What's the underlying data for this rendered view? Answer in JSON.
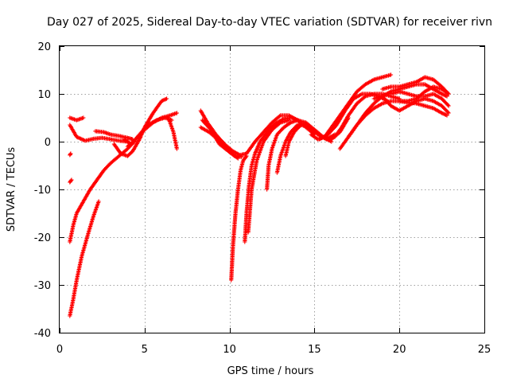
{
  "chart_data": {
    "type": "scatter",
    "title": "Day 027 of 2025, Sidereal Day-to-day VTEC variation (SDTVAR) for receiver rivn",
    "xlabel": "GPS time / hours",
    "ylabel": "SDTVAR / TECUs",
    "xlim": [
      0,
      25
    ],
    "ylim": [
      -40,
      20
    ],
    "xticks": [
      0,
      5,
      10,
      15,
      20,
      25
    ],
    "yticks": [
      -40,
      -30,
      -20,
      -10,
      0,
      10,
      20
    ],
    "xtick_labels": [
      "0",
      "5",
      "10",
      "15",
      "20",
      "25"
    ],
    "ytick_labels": [
      "-40",
      "-30",
      "-20",
      "-10",
      "0",
      "10",
      "20"
    ],
    "grid": true,
    "marker": "+",
    "color": "#ff0000",
    "series": [
      {
        "name": "trace-1",
        "x": [
          0.6,
          0.8,
          1.0,
          1.3,
          1.7,
          2.0,
          2.3
        ],
        "y": [
          -36.5,
          -33,
          -29,
          -24,
          -19,
          -15.5,
          -12.5
        ]
      },
      {
        "name": "trace-2",
        "x": [
          0.6,
          0.8,
          1.0,
          1.4,
          1.8,
          2.2,
          2.6,
          3.0,
          3.5,
          4.0,
          4.4
        ],
        "y": [
          -21,
          -17.5,
          -15,
          -12.5,
          -10,
          -8,
          -6,
          -4.5,
          -3,
          -1.5,
          0
        ]
      },
      {
        "name": "trace-3",
        "x": [
          0.6,
          0.7
        ],
        "y": [
          -8.5,
          -8
        ]
      },
      {
        "name": "trace-4",
        "x": [
          0.6,
          0.65
        ],
        "y": [
          -2.8,
          -2.5
        ]
      },
      {
        "name": "trace-5",
        "x": [
          0.6,
          1.0,
          1.4
        ],
        "y": [
          5,
          4.5,
          5
        ]
      },
      {
        "name": "trace-6",
        "x": [
          0.6,
          1.0,
          1.5,
          2.0,
          2.5,
          3.0,
          3.5,
          4.0
        ],
        "y": [
          3.5,
          1,
          0.2,
          0.6,
          0.8,
          0.5,
          0.2,
          0
        ]
      },
      {
        "name": "trace-7",
        "x": [
          2.1,
          2.6,
          3.0,
          3.5,
          4.0,
          4.3
        ],
        "y": [
          2.2,
          2.0,
          1.5,
          1.2,
          0.8,
          0.5
        ]
      },
      {
        "name": "trace-8",
        "x": [
          3.2,
          3.6,
          4.0,
          4.3,
          4.7,
          5.0,
          5.5,
          6.0,
          6.3
        ],
        "y": [
          -0.5,
          -2.5,
          -3,
          -2,
          0.5,
          3,
          6,
          8.5,
          9
        ]
      },
      {
        "name": "trace-9",
        "x": [
          3.8,
          4.2,
          4.7,
          5.2,
          5.7,
          6.2,
          6.6
        ],
        "y": [
          0.5,
          -0.5,
          1.5,
          3.5,
          4.5,
          5,
          4.5
        ]
      },
      {
        "name": "trace-10",
        "x": [
          4.0,
          4.5,
          5.0,
          5.5,
          6.0,
          6.5,
          6.9
        ],
        "y": [
          -1,
          0.5,
          2.5,
          4,
          5,
          5.5,
          6
        ]
      },
      {
        "name": "trace-11",
        "x": [
          6.4,
          6.7,
          6.9
        ],
        "y": [
          5,
          2,
          -1.5
        ]
      },
      {
        "name": "trace-12",
        "x": [
          8.3,
          8.7,
          9.2,
          9.7,
          10.2,
          10.6,
          11.0
        ],
        "y": [
          6.5,
          4,
          1.5,
          -0.5,
          -2,
          -2.8,
          -2.5
        ]
      },
      {
        "name": "trace-13",
        "x": [
          8.3,
          8.8,
          9.3,
          9.8,
          10.3,
          10.7
        ],
        "y": [
          3,
          2,
          0.5,
          -1.5,
          -3,
          -3.2
        ]
      },
      {
        "name": "trace-14",
        "x": [
          8.4,
          8.9,
          9.4,
          10.0,
          10.5
        ],
        "y": [
          4.5,
          2.5,
          -0.5,
          -2.2,
          -3.5
        ]
      },
      {
        "name": "trace-15",
        "x": [
          10.1,
          10.2,
          10.35,
          10.5,
          10.65,
          10.8,
          11.0
        ],
        "y": [
          -29,
          -22,
          -15,
          -10,
          -6,
          -4,
          -3
        ]
      },
      {
        "name": "trace-16",
        "x": [
          10.9,
          11.0,
          11.15,
          11.3,
          11.5,
          11.8,
          12.2,
          12.7,
          13.2,
          13.7,
          14.2
        ],
        "y": [
          -21,
          -15,
          -9,
          -5,
          -2.5,
          0,
          2,
          3.8,
          4.8,
          5,
          4.2
        ]
      },
      {
        "name": "trace-17",
        "x": [
          11.0,
          11.5,
          12.0,
          12.5,
          13.0,
          13.5,
          14.0,
          14.5,
          15.0
        ],
        "y": [
          -2.5,
          0,
          2,
          4,
          5.5,
          5.5,
          4.5,
          3,
          1.5
        ]
      },
      {
        "name": "trace-18",
        "x": [
          11.1,
          11.3,
          11.6,
          12.0,
          12.5,
          13.0,
          13.5
        ],
        "y": [
          -19,
          -10,
          -4,
          0,
          2.5,
          4,
          4.5
        ]
      },
      {
        "name": "trace-19",
        "x": [
          12.2,
          12.3,
          12.5,
          12.8,
          13.2,
          13.6,
          14.0,
          14.5,
          15.0,
          15.5,
          16.0
        ],
        "y": [
          -10,
          -5,
          -1.5,
          1.5,
          3,
          4,
          4.5,
          4,
          2.5,
          1,
          0
        ]
      },
      {
        "name": "trace-20",
        "x": [
          12.8,
          13.0,
          13.3,
          13.6,
          14.0,
          14.5,
          15.0,
          15.5,
          16.0,
          16.5,
          17.0
        ],
        "y": [
          -6.5,
          -3,
          0,
          2,
          3.5,
          3.8,
          2.5,
          1,
          0.5,
          2,
          5
        ]
      },
      {
        "name": "trace-21",
        "x": [
          13.3,
          13.5,
          13.8,
          14.2,
          14.7,
          15.2,
          15.7,
          16.2
        ],
        "y": [
          -3,
          0,
          2,
          3.5,
          3,
          1.5,
          0.5,
          1.5
        ]
      },
      {
        "name": "trace-22",
        "x": [
          14.8,
          15.2,
          15.6,
          16.0,
          16.5,
          17.0,
          17.5,
          18.0,
          18.5,
          19.0,
          19.5
        ],
        "y": [
          1.5,
          0.5,
          1,
          3,
          5.5,
          8,
          10.5,
          12,
          13,
          13.5,
          14
        ]
      },
      {
        "name": "trace-23",
        "x": [
          15.3,
          15.8,
          16.3,
          16.8,
          17.3,
          17.8,
          18.3,
          18.8,
          19.3
        ],
        "y": [
          0.5,
          1.5,
          3.5,
          6.5,
          9,
          10,
          10,
          9.5,
          8.5
        ]
      },
      {
        "name": "trace-24",
        "x": [
          15.8,
          16.2,
          16.6,
          17.0,
          17.5,
          18.0,
          18.5,
          19.0,
          19.5,
          20.0
        ],
        "y": [
          0.5,
          1,
          3,
          5.5,
          8,
          9.5,
          10,
          10,
          9.5,
          9
        ]
      },
      {
        "name": "trace-25",
        "x": [
          16.5,
          17.0,
          17.5,
          18.0,
          18.5,
          19.0,
          19.5,
          20.0,
          20.5,
          21.0,
          21.5,
          22.0,
          22.5,
          22.8
        ],
        "y": [
          -1.5,
          1,
          3.5,
          5.5,
          7,
          8,
          8.5,
          8.5,
          8.2,
          8,
          7.5,
          7,
          6,
          5.5
        ]
      },
      {
        "name": "trace-26",
        "x": [
          17.0,
          17.5,
          18.0,
          18.5,
          19.0,
          19.5,
          20.0,
          20.5,
          21.0,
          21.5,
          22.0,
          22.5,
          22.8
        ],
        "y": [
          1,
          3.5,
          6,
          8,
          9.5,
          10.5,
          11,
          11.5,
          12,
          12,
          11,
          10,
          9.5
        ]
      },
      {
        "name": "trace-27",
        "x": [
          18.5,
          19.0,
          19.5,
          20.0,
          20.5,
          21.0,
          21.5,
          22.0,
          22.5,
          22.9
        ],
        "y": [
          9,
          9.5,
          7.5,
          6.5,
          7.5,
          8.5,
          9,
          8.5,
          7.5,
          6
        ]
      },
      {
        "name": "trace-28",
        "x": [
          19.0,
          19.5,
          20.0,
          20.5,
          21.0,
          21.5,
          22.0,
          22.5,
          22.9
        ],
        "y": [
          11,
          11.5,
          11.5,
          12,
          12.5,
          13.5,
          13,
          11.5,
          10
        ]
      },
      {
        "name": "trace-29",
        "x": [
          19.5,
          20.0,
          20.5,
          21.0,
          21.5,
          22.0,
          22.5,
          22.9
        ],
        "y": [
          10,
          10.5,
          10,
          9.5,
          9.5,
          10,
          9,
          7.5
        ]
      },
      {
        "name": "trace-30",
        "x": [
          20.0,
          20.5,
          21.0,
          21.5,
          22.0,
          22.5,
          22.9
        ],
        "y": [
          8.5,
          8.5,
          9,
          10.5,
          11.5,
          11,
          10
        ]
      }
    ]
  }
}
